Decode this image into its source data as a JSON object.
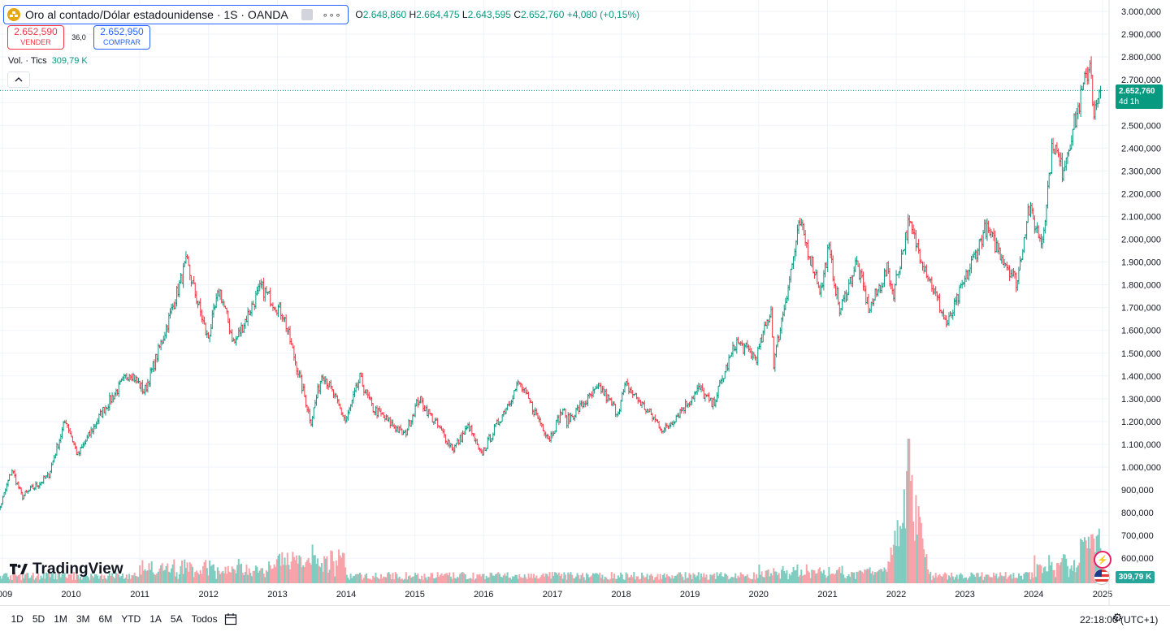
{
  "header": {
    "symbol_title": "Oro al contado/Dólar estadounidense · 1S · OANDA",
    "ohlc": {
      "o_label": "O",
      "o": "2.648,860",
      "h_label": "H",
      "h": "2.664,475",
      "l_label": "L",
      "l": "2.643,595",
      "c_label": "C",
      "c": "2.652,760",
      "change": "+4,080 (+0,15%)"
    },
    "sell_price": "2.652,590",
    "sell_label": "VENDER",
    "spread": "36,0",
    "buy_price": "2.652,950",
    "buy_label": "COMPRAR",
    "volume_label": "Vol. · Tics",
    "volume_value": "309,79 K",
    "menu_dots": "∘∘∘"
  },
  "brand": {
    "logo_text": "TradingView"
  },
  "price_axis_label": {
    "price": "2.652,760",
    "countdown": "4d 1h"
  },
  "volume_axis_label": "309,79 K",
  "bottom_bar": {
    "ranges": [
      "1D",
      "5D",
      "1M",
      "3M",
      "6M",
      "YTD",
      "1A",
      "5A",
      "Todos"
    ],
    "clock": "22:18:00 (UTC+1)"
  },
  "colors": {
    "up": "#089981",
    "down": "#f23645",
    "vol_up": "#7fccc0",
    "vol_down": "#f7a3a9",
    "grid": "#f0f3fa",
    "current": "#089981"
  },
  "icons": [
    "gold-coin-icon",
    "chevron-up-icon",
    "calendar-icon",
    "gear-icon",
    "lightning-icon",
    "us-flag-icon"
  ],
  "chart_data": {
    "type": "candlestick",
    "interval": "1W",
    "y_ticks": [
      "3.000,000",
      "2.900,000",
      "2.800,000",
      "2.700,000",
      "2.600,000",
      "2.500,000",
      "2.400,000",
      "2.300,000",
      "2.200,000",
      "2.100,000",
      "2.000,000",
      "1.900,000",
      "1.800,000",
      "1.700,000",
      "1.600,000",
      "1.500,000",
      "1.400,000",
      "1.300,000",
      "1.200,000",
      "1.100,000",
      "1.000,000",
      "900,000",
      "800,000",
      "700,000",
      "600,000"
    ],
    "ylim": [
      600,
      3000
    ],
    "x_ticks": [
      "2009",
      "2010",
      "2011",
      "2012",
      "2013",
      "2014",
      "2015",
      "2016",
      "2017",
      "2018",
      "2019",
      "2020",
      "2021",
      "2022",
      "2023",
      "2024",
      "2025"
    ],
    "xlim": [
      "2009-01-01",
      "2025-01-01"
    ],
    "current_price": 2652.76,
    "close_path": [
      [
        "2008-11-15",
        730
      ],
      [
        "2009-02-20",
        990
      ],
      [
        "2009-04-15",
        870
      ],
      [
        "2009-09-01",
        960
      ],
      [
        "2009-12-03",
        1210
      ],
      [
        "2010-02-05",
        1050
      ],
      [
        "2010-06-20",
        1250
      ],
      [
        "2010-11-10",
        1420
      ],
      [
        "2011-01-25",
        1330
      ],
      [
        "2011-05-01",
        1560
      ],
      [
        "2011-09-06",
        1900
      ],
      [
        "2011-12-28",
        1560
      ],
      [
        "2012-02-28",
        1780
      ],
      [
        "2012-05-15",
        1540
      ],
      [
        "2012-10-05",
        1790
      ],
      [
        "2013-02-01",
        1670
      ],
      [
        "2013-06-28",
        1200
      ],
      [
        "2013-08-28",
        1420
      ],
      [
        "2013-12-30",
        1200
      ],
      [
        "2014-03-15",
        1390
      ],
      [
        "2014-05-20",
        1260
      ],
      [
        "2014-11-07",
        1140
      ],
      [
        "2015-01-22",
        1300
      ],
      [
        "2015-07-24",
        1080
      ],
      [
        "2015-10-15",
        1180
      ],
      [
        "2015-12-17",
        1050
      ],
      [
        "2016-07-06",
        1370
      ],
      [
        "2016-12-15",
        1125
      ],
      [
        "2017-02-25",
        1255
      ],
      [
        "2017-03-15",
        1200
      ],
      [
        "2017-09-08",
        1350
      ],
      [
        "2017-12-12",
        1240
      ],
      [
        "2018-01-25",
        1360
      ],
      [
        "2018-08-16",
        1160
      ],
      [
        "2019-02-20",
        1345
      ],
      [
        "2019-05-01",
        1270
      ],
      [
        "2019-09-04",
        1550
      ],
      [
        "2019-12-20",
        1480
      ],
      [
        "2020-03-09",
        1700
      ],
      [
        "2020-03-19",
        1450
      ],
      [
        "2020-08-07",
        2070
      ],
      [
        "2020-11-27",
        1770
      ],
      [
        "2021-01-06",
        1960
      ],
      [
        "2021-03-08",
        1680
      ],
      [
        "2021-06-03",
        1900
      ],
      [
        "2021-08-10",
        1690
      ],
      [
        "2021-11-16",
        1870
      ],
      [
        "2021-12-15",
        1760
      ],
      [
        "2022-03-08",
        2070
      ],
      [
        "2022-09-28",
        1620
      ],
      [
        "2023-04-20",
        2050
      ],
      [
        "2023-10-05",
        1810
      ],
      [
        "2023-12-04",
        2140
      ],
      [
        "2024-02-14",
        1985
      ],
      [
        "2024-04-12",
        2430
      ],
      [
        "2024-06-01",
        2300
      ],
      [
        "2024-10-30",
        2790
      ],
      [
        "2024-11-14",
        2540
      ],
      [
        "2024-12-27",
        2652.76
      ]
    ],
    "volume_max_date": "2022-03-08"
  }
}
